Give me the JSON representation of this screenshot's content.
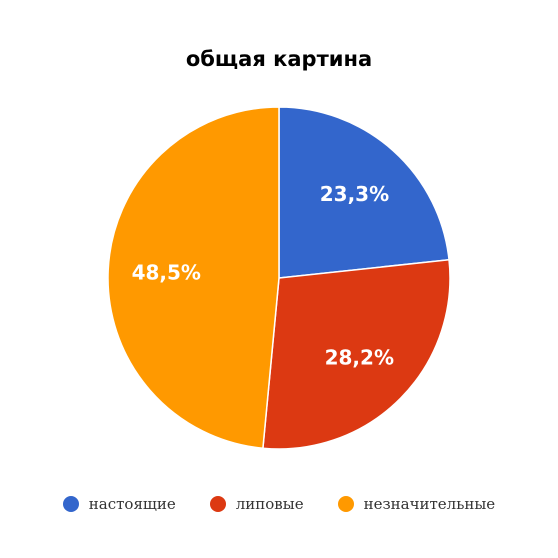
{
  "chart_data": {
    "type": "pie",
    "title": "общая картина",
    "slices": [
      {
        "label": "настоящие",
        "value": 23.3,
        "display": "23,3%",
        "color": "#3366cc"
      },
      {
        "label": "липовые",
        "value": 28.2,
        "display": "28,2%",
        "color": "#dc3912"
      },
      {
        "label": "незначительные",
        "value": 48.5,
        "display": "48,5%",
        "color": "#ff9900"
      }
    ],
    "start_angle": "12 o'clock",
    "direction": "clockwise",
    "legend_position": "bottom"
  }
}
